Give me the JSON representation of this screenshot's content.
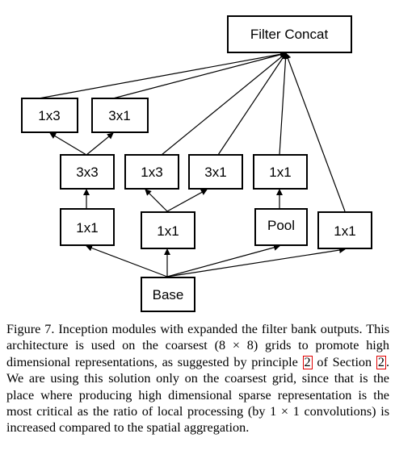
{
  "diagram": {
    "nodes": {
      "filter_concat": "Filter Concat",
      "a_1x3": "1x3",
      "a_3x1": "3x1",
      "b_3x3": "3x3",
      "b_1x3": "1x3",
      "b_3x1": "3x1",
      "b_1x1": "1x1",
      "c_1x1_left": "1x1",
      "c_1x1_mid": "1x1",
      "c_pool": "Pool",
      "c_1x1_right": "1x1",
      "base": "Base"
    }
  },
  "caption": {
    "t1": "Figure 7. Inception modules with expanded the filter bank outputs. This architecture is used on the coarsest (8 × 8) grids to promote high dimensional representations, as suggested by principle ",
    "ref1": "2",
    "t2": " of Section ",
    "ref2": "2",
    "t3": ". We are using this solution only on the coarsest grid, since that is the place where producing high dimensional sparse representation is the most critical as the ratio of local processing (by 1 × 1 convolutions) is increased compared to the spatial aggregation."
  }
}
